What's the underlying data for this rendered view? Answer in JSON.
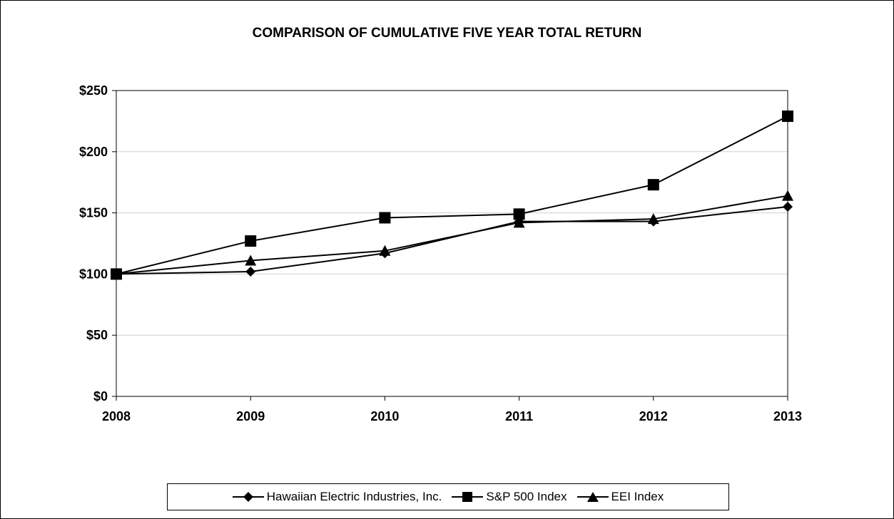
{
  "chart_data": {
    "type": "line",
    "title": "COMPARISON OF CUMULATIVE FIVE YEAR TOTAL RETURN",
    "xlabel": "",
    "ylabel": "",
    "categories": [
      "2008",
      "2009",
      "2010",
      "2011",
      "2012",
      "2013"
    ],
    "ylim": [
      0,
      250
    ],
    "yticks": [
      0,
      50,
      100,
      150,
      200,
      250
    ],
    "ytick_labels": [
      "$0",
      "$50",
      "$100",
      "$150",
      "$200",
      "$250"
    ],
    "grid": true,
    "legend_position": "bottom",
    "series": [
      {
        "name": "Hawaiian Electric Industries, Inc.",
        "marker": "diamond",
        "color": "#000000",
        "values": [
          100,
          102,
          117,
          143,
          143,
          155
        ]
      },
      {
        "name": "S&P 500 Index",
        "marker": "square",
        "color": "#000000",
        "values": [
          100,
          127,
          146,
          149,
          173,
          229
        ]
      },
      {
        "name": "EEI Index",
        "marker": "triangle",
        "color": "#000000",
        "values": [
          100,
          111,
          119,
          142,
          145,
          164
        ]
      }
    ]
  }
}
